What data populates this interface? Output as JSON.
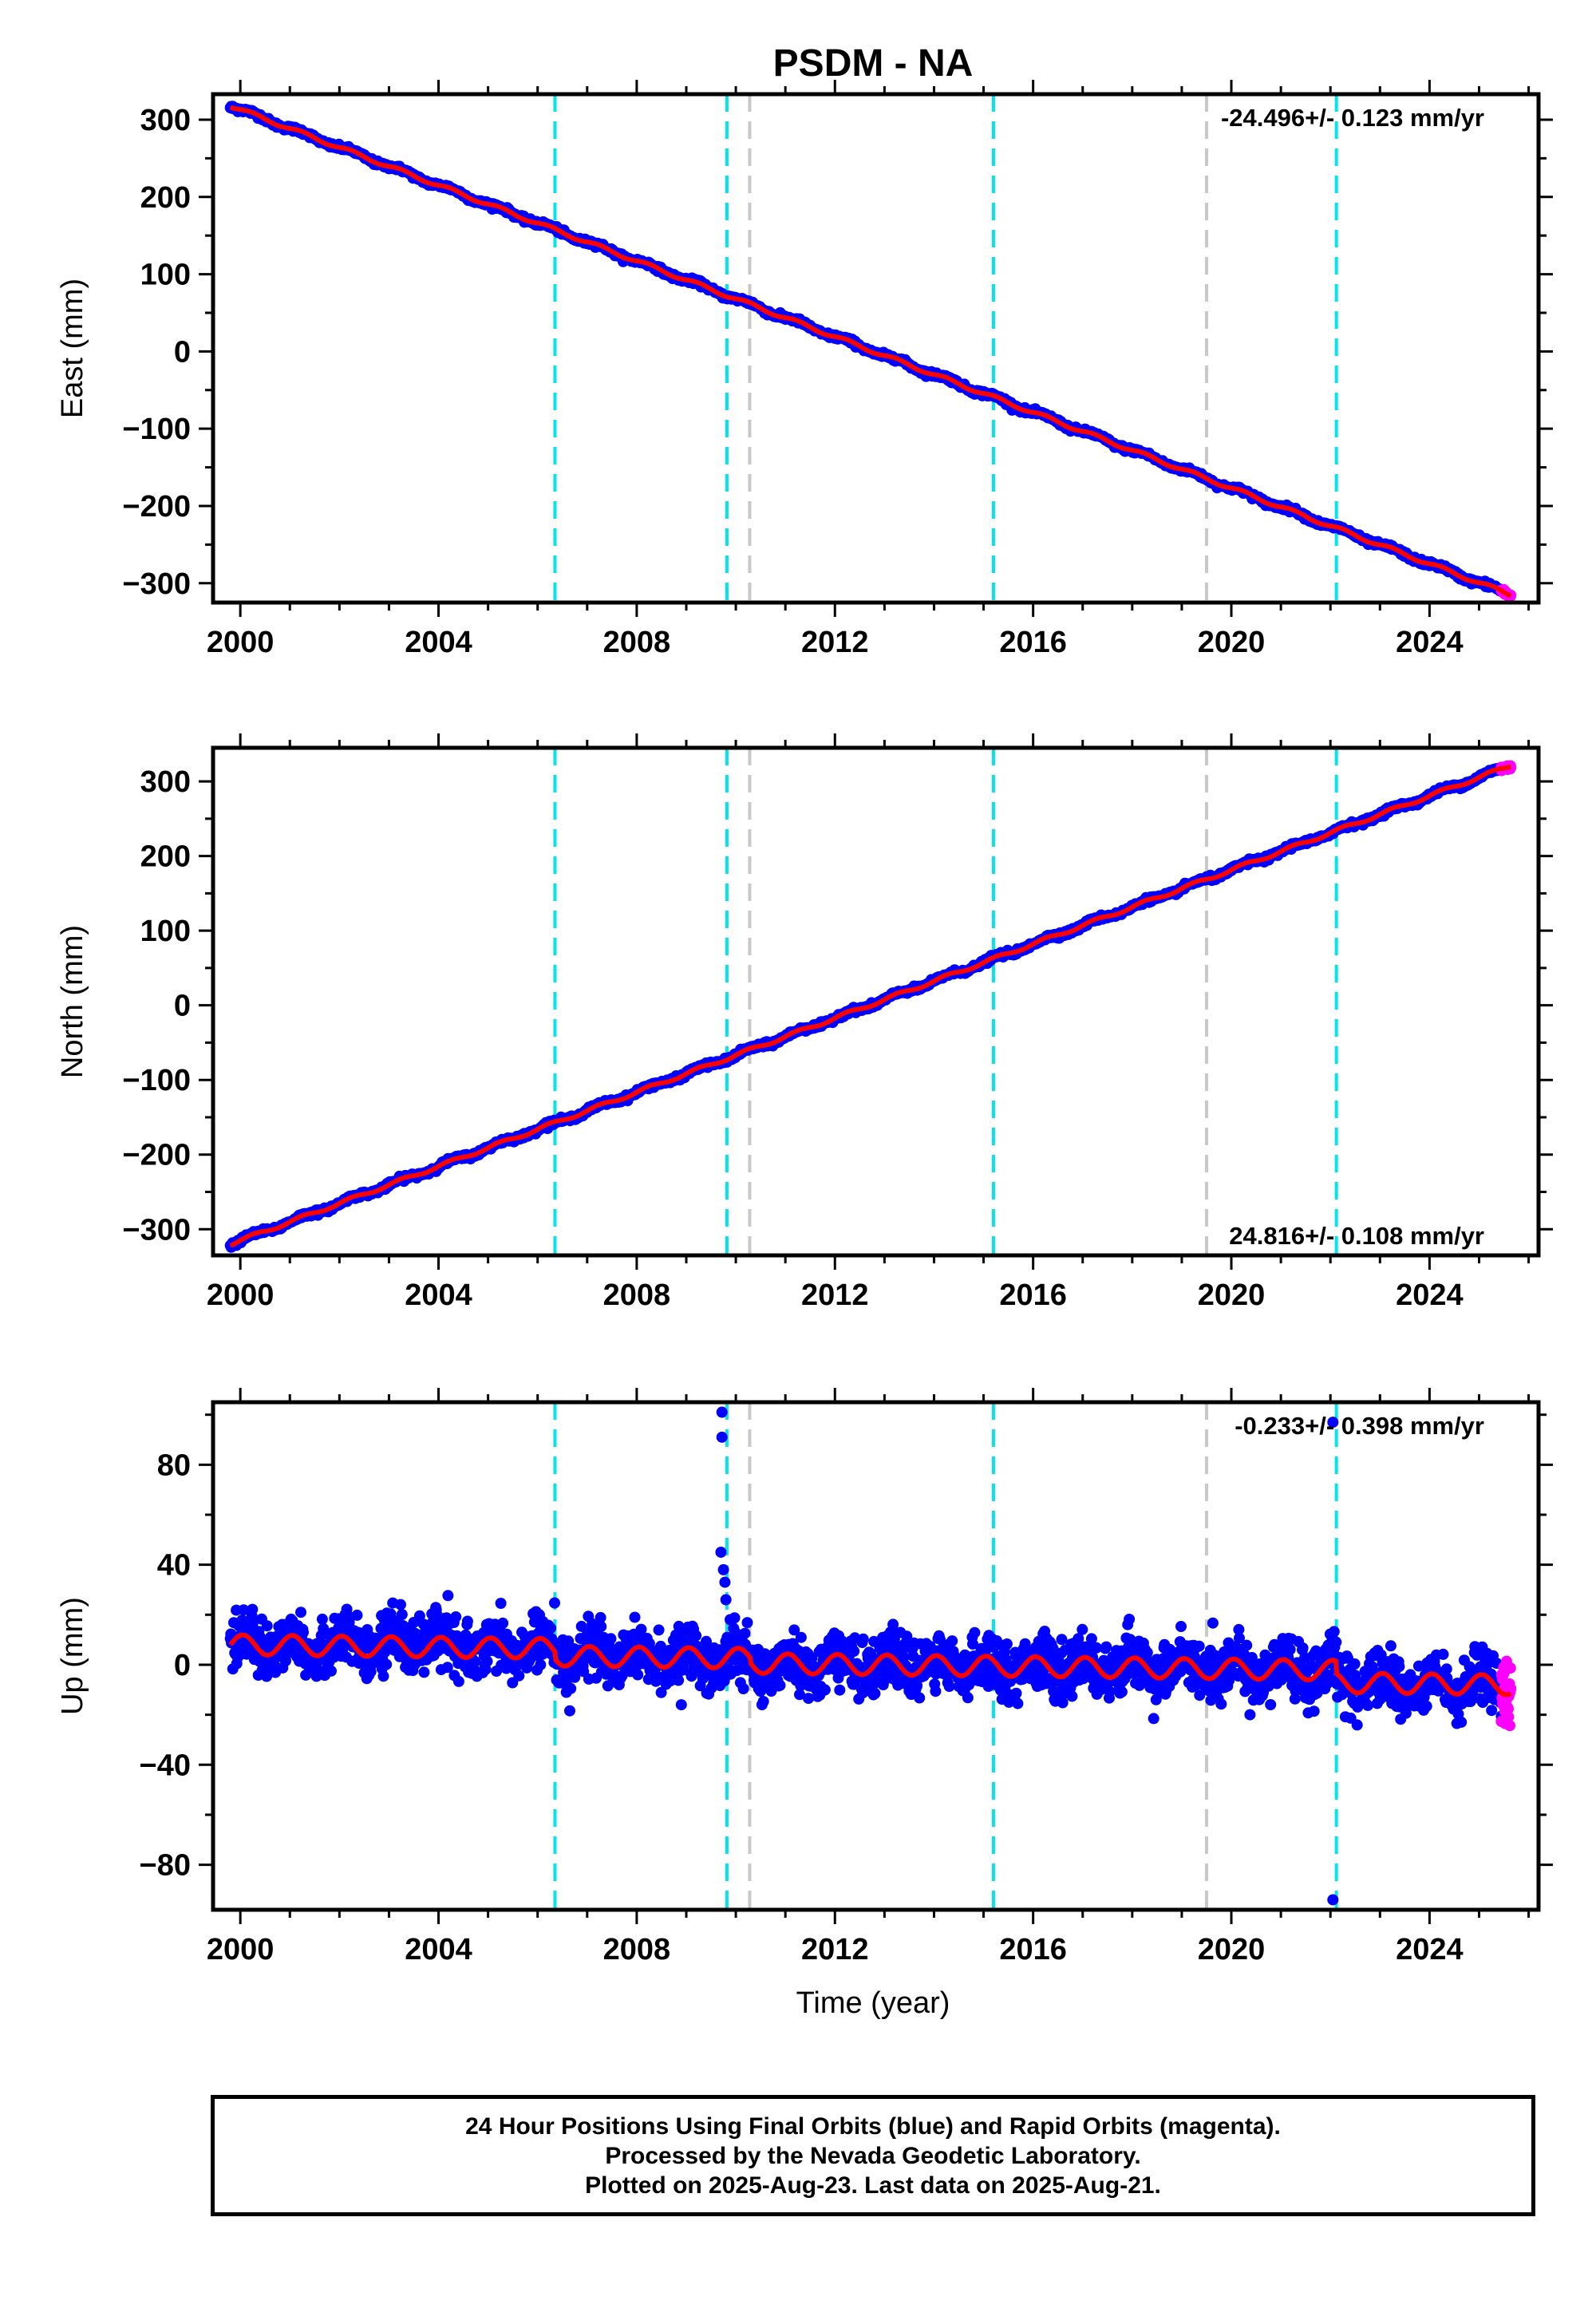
{
  "title": "PSDM - NA",
  "xlabel": "Time (year)",
  "colors": {
    "final_orbits": "#0000ff",
    "rapid_orbits": "#ff00ff",
    "model": "#ff0000",
    "equipment_change": "#00e5ee",
    "other_event": "#c8c8c8"
  },
  "x_ticks": [
    "2000",
    "2004",
    "2008",
    "2012",
    "2016",
    "2020",
    "2024"
  ],
  "xlim": [
    1999.45,
    2026.2
  ],
  "chart_data": [
    {
      "type": "scatter",
      "name": "east",
      "ylabel": "East (mm)",
      "ylim": [
        -325,
        333
      ],
      "y_ticks": [
        300,
        200,
        100,
        0,
        -100,
        -200,
        -300
      ],
      "y_tick_labels": [
        "300",
        "200",
        "100",
        "0",
        "−100",
        "−200",
        "−300"
      ],
      "rate_label": "-24.496+/- 0.123 mm/yr",
      "rate_position": "top-right",
      "data_start": 1999.8,
      "data_end": 2025.64,
      "start_value": 318,
      "slope_mm_per_yr": -24.496,
      "rapid_start": 2025.45
    },
    {
      "type": "scatter",
      "name": "north",
      "ylabel": "North (mm)",
      "ylim": [
        -335,
        345
      ],
      "y_ticks": [
        300,
        200,
        100,
        0,
        -100,
        -200,
        -300
      ],
      "y_tick_labels": [
        "300",
        "200",
        "100",
        "0",
        "−100",
        "−200",
        "−300"
      ],
      "rate_label": "24.816+/- 0.108 mm/yr",
      "rate_position": "bottom-right",
      "data_start": 1999.8,
      "data_end": 2025.64,
      "start_value": -320,
      "slope_mm_per_yr": 24.816,
      "rapid_start": 2025.45
    },
    {
      "type": "scatter",
      "name": "up",
      "ylabel": "Up (mm)",
      "ylim": [
        -98,
        105
      ],
      "y_ticks": [
        80,
        40,
        0,
        -40,
        -80
      ],
      "y_tick_labels": [
        "80",
        "40",
        "0",
        "−40",
        "−80"
      ],
      "rate_label": "-0.233+/- 0.398 mm/yr",
      "rate_position": "top-right",
      "data_start": 1999.8,
      "data_end": 2025.64,
      "start_value": 8,
      "slope_mm_per_yr": -0.233,
      "seasonal_amplitude_mm": 4,
      "scatter_sigma_mm": 5,
      "rapid_start": 2025.45,
      "outliers": [
        {
          "x": 2009.72,
          "y": 101
        },
        {
          "x": 2009.72,
          "y": 91
        },
        {
          "x": 2009.7,
          "y": 45
        },
        {
          "x": 2009.75,
          "y": 38
        },
        {
          "x": 2009.78,
          "y": 33
        },
        {
          "x": 2009.8,
          "y": 26
        },
        {
          "x": 2008.9,
          "y": -16
        },
        {
          "x": 2022.05,
          "y": 97
        },
        {
          "x": 2022.05,
          "y": -94
        }
      ]
    }
  ],
  "events": {
    "cyan": [
      2006.35,
      2009.82,
      2015.2,
      2022.12
    ],
    "gray": [
      2010.28,
      2019.5
    ]
  },
  "footer": {
    "line1": "24 Hour Positions Using Final Orbits (blue) and Rapid Orbits (magenta).",
    "line2": "Processed by the Nevada Geodetic Laboratory.",
    "line3": "Plotted on 2025-Aug-23. Last data on 2025-Aug-21."
  }
}
